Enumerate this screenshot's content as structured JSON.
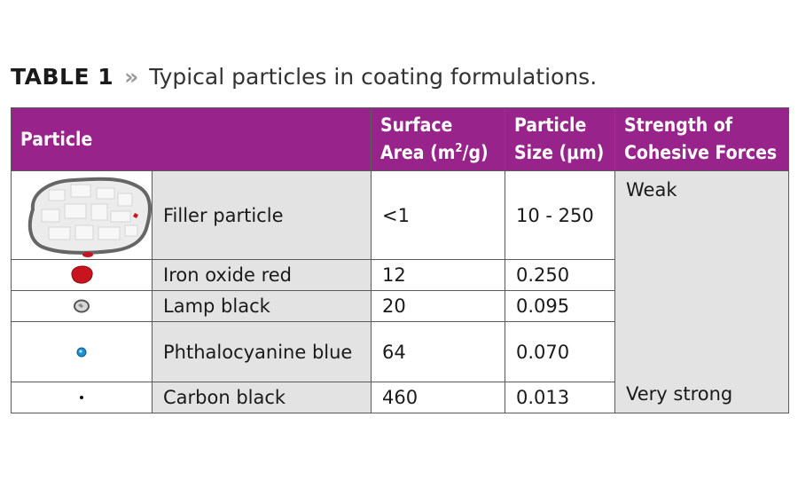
{
  "caption": {
    "label": "TABLE 1",
    "separator": "»",
    "text": "Typical particles in coating formulations."
  },
  "table": {
    "headers": {
      "particle": "Particle",
      "surface_area_line1": "Surface",
      "surface_area_line2_pre": "Area (m",
      "surface_area_sup": "2",
      "surface_area_line2_post": "/g)",
      "particle_size_line1": "Particle",
      "particle_size_line2": "Size (μm)",
      "strength_line1": "Strength of",
      "strength_line2": "Cohesive Forces"
    },
    "rows": [
      {
        "name": "Filler particle",
        "surface_area": "<1",
        "particle_size": "10 - 250",
        "icon": "filler-particle-icon"
      },
      {
        "name": "Iron oxide red",
        "surface_area": "12",
        "particle_size": "0.250",
        "icon": "iron-oxide-red-particle-icon"
      },
      {
        "name": "Lamp black",
        "surface_area": "20",
        "particle_size": "0.095",
        "icon": "lamp-black-particle-icon"
      },
      {
        "name": "Phthalocyanine blue",
        "surface_area": "64",
        "particle_size": "0.070",
        "icon": "phthalocyanine-blue-particle-icon"
      },
      {
        "name": "Carbon black",
        "surface_area": "460",
        "particle_size": "0.013",
        "icon": "carbon-black-particle-icon"
      }
    ],
    "strength": {
      "top": "Weak",
      "bottom": "Very strong"
    }
  },
  "colors": {
    "header_bg": "#98238a",
    "name_cell_bg": "#e3e3e3",
    "iron_oxide": "#c8141e",
    "phthalo": "#1f8fd0"
  }
}
